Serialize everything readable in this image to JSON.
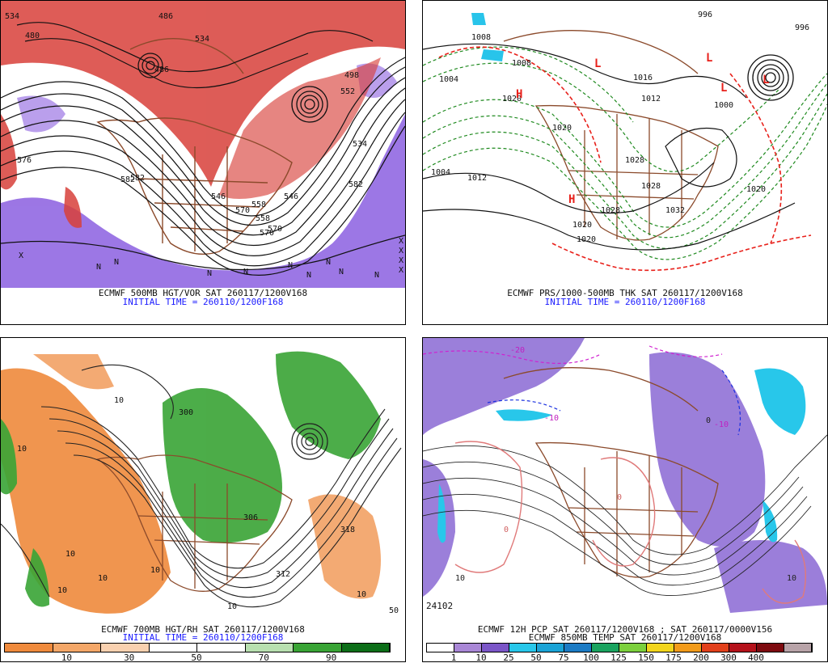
{
  "panels": [
    {
      "caption_line1": "ECMWF 500MB HGT/VOR SAT 260117/1200V168",
      "caption_line2": "INITIAL TIME = 260110/1200F168",
      "contour_labels": [
        "534",
        "480",
        "486",
        "576",
        "582",
        "570",
        "546",
        "534",
        "558",
        "570",
        "582",
        "582",
        "486",
        "498",
        "534",
        "552",
        "558",
        "570",
        "546"
      ],
      "markers": [
        "X",
        "X",
        "X",
        "X",
        "X",
        "N",
        "N",
        "N",
        "N",
        "N",
        "N",
        "N",
        "N",
        "N"
      ]
    },
    {
      "caption_line1": "ECMWF PRS/1000-500MB THK SAT 260117/1200V168",
      "caption_line2": "INITIAL TIME = 260110/1200F168",
      "contour_labels": [
        "996",
        "1008",
        "1004",
        "1012",
        "1020",
        "1020",
        "1028",
        "1032",
        "1028",
        "1020",
        "1012",
        "1000",
        "996",
        "1008",
        "1020",
        "1020",
        "1028",
        "1004",
        "1016"
      ],
      "markers": [
        "L",
        "L",
        "L",
        "L",
        "H",
        "H"
      ]
    },
    {
      "caption_line1": "ECMWF 700MB HGT/RH SAT 260117/1200V168",
      "caption_line2": "INITIAL TIME = 260110/1200F168",
      "contour_labels": [
        "10",
        "10",
        "10",
        "10",
        "10",
        "10",
        "10",
        "10",
        "312",
        "318",
        "306",
        "300",
        "50"
      ],
      "colorbar": {
        "colors": [
          "#ef8a3c",
          "#f4a768",
          "#f9d1b0",
          "#ffffff",
          "#ffffff",
          "#b8e0b0",
          "#39a435",
          "#0c6e18"
        ],
        "labels": [
          "10",
          "30",
          "50",
          "70",
          "90"
        ]
      }
    },
    {
      "caption_line1": "ECMWF 12H PCP SAT 260117/1200V168 ; SAT 260117/0000V156",
      "caption_line2": "ECMWF 850MB TEMP SAT 260117/1200V168",
      "contour_labels": [
        "-20",
        "-10",
        "-10",
        "0",
        "0",
        "10",
        "10",
        "0"
      ],
      "corner_number": "24102",
      "colorbar": {
        "colors": [
          "#ffffff",
          "#a987d6",
          "#7b56c8",
          "#28c7ea",
          "#1aa3d6",
          "#1c7bc4",
          "#1aa35f",
          "#7cd03d",
          "#f2d51c",
          "#f29b1a",
          "#e2401b",
          "#b5121b",
          "#7e0b10",
          "#b8a3a8"
        ],
        "labels": [
          "1",
          "10",
          "25",
          "50",
          "75",
          "100",
          "125",
          "150",
          "175",
          "200",
          "300",
          "400"
        ]
      }
    }
  ]
}
